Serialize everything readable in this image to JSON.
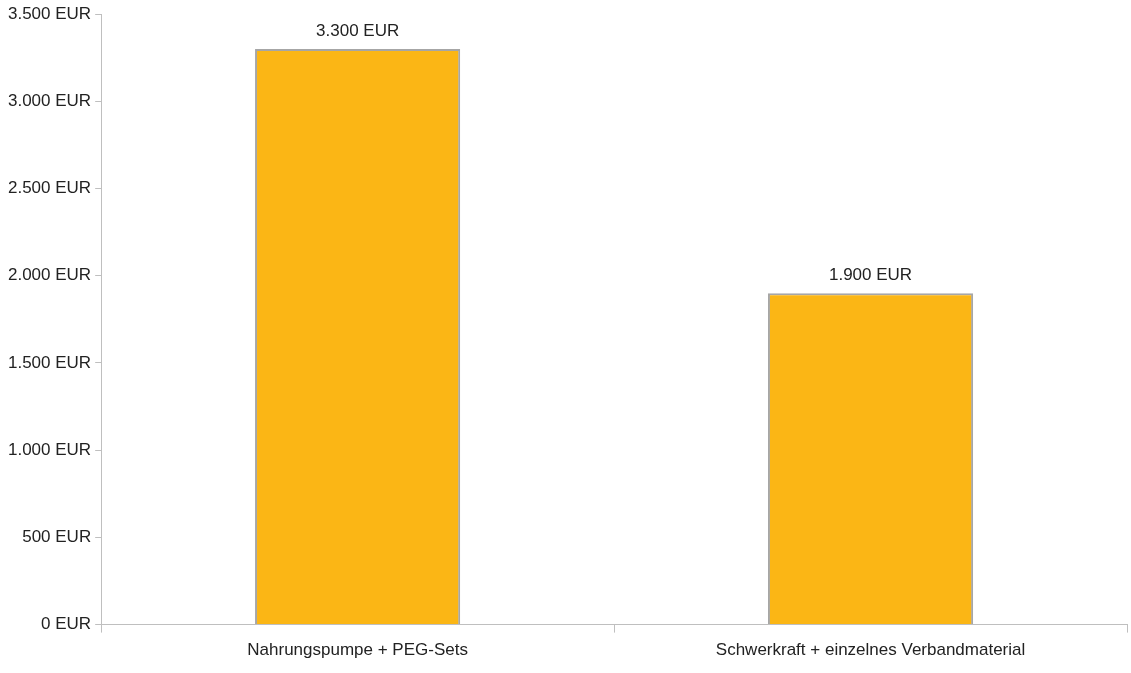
{
  "chart_data": {
    "type": "bar",
    "categories": [
      "Nahrungspumpe + PEG-Sets",
      "Schwerkraft + einzelnes Verbandmaterial"
    ],
    "values": [
      3300,
      1900
    ],
    "value_labels": [
      "3.300 EUR",
      "1.900 EUR"
    ],
    "color": "#fbb615",
    "ylim": [
      0,
      3500
    ],
    "yticks": [
      {
        "value": 0,
        "label": "0 EUR"
      },
      {
        "value": 500,
        "label": "500 EUR"
      },
      {
        "value": 1000,
        "label": "1.000 EUR"
      },
      {
        "value": 1500,
        "label": "1.500 EUR"
      },
      {
        "value": 2000,
        "label": "2.000 EUR"
      },
      {
        "value": 2500,
        "label": "2.500 EUR"
      },
      {
        "value": 3000,
        "label": "3.000 EUR"
      },
      {
        "value": 3500,
        "label": "3.500 EUR"
      }
    ],
    "grid": false,
    "legend": false
  }
}
